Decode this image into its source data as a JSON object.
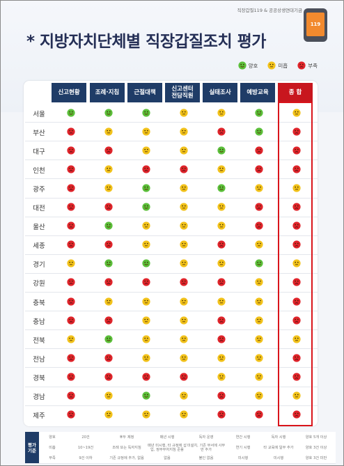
{
  "header": {
    "source": "직장갑질119 & 공공상생연대기금",
    "title": "* 지방자치단체별 직장갑질조치 평가",
    "logo_text": "119"
  },
  "legend": [
    {
      "key": "good",
      "label": "양호"
    },
    {
      "key": "fair",
      "label": "미흡"
    },
    {
      "key": "poor",
      "label": "부족"
    }
  ],
  "columns": [
    "신고현황",
    "조례·지침",
    "근절대책",
    "신고센터\n전담직원",
    "실태조사",
    "예방교육",
    "종 합"
  ],
  "rows": [
    {
      "region": "서울",
      "ratings": [
        "good",
        "good",
        "good",
        "fair",
        "fair",
        "good",
        "fair"
      ]
    },
    {
      "region": "부산",
      "ratings": [
        "poor",
        "fair",
        "fair",
        "fair",
        "poor",
        "good",
        "poor"
      ]
    },
    {
      "region": "대구",
      "ratings": [
        "poor",
        "poor",
        "fair",
        "fair",
        "good",
        "poor",
        "poor"
      ]
    },
    {
      "region": "인천",
      "ratings": [
        "poor",
        "fair",
        "poor",
        "poor",
        "fair",
        "poor",
        "poor"
      ]
    },
    {
      "region": "광주",
      "ratings": [
        "poor",
        "fair",
        "good",
        "fair",
        "good",
        "fair",
        "fair"
      ]
    },
    {
      "region": "대전",
      "ratings": [
        "poor",
        "poor",
        "good",
        "fair",
        "fair",
        "poor",
        "poor"
      ]
    },
    {
      "region": "울산",
      "ratings": [
        "poor",
        "good",
        "fair",
        "fair",
        "fair",
        "poor",
        "poor"
      ]
    },
    {
      "region": "세종",
      "ratings": [
        "poor",
        "poor",
        "fair",
        "fair",
        "poor",
        "fair",
        "poor"
      ]
    },
    {
      "region": "경기",
      "ratings": [
        "fair",
        "good",
        "good",
        "fair",
        "fair",
        "good",
        "fair"
      ]
    },
    {
      "region": "강원",
      "ratings": [
        "poor",
        "poor",
        "poor",
        "poor",
        "poor",
        "fair",
        "poor"
      ]
    },
    {
      "region": "충북",
      "ratings": [
        "poor",
        "fair",
        "fair",
        "fair",
        "fair",
        "fair",
        "poor"
      ]
    },
    {
      "region": "충남",
      "ratings": [
        "poor",
        "poor",
        "fair",
        "fair",
        "poor",
        "fair",
        "poor"
      ]
    },
    {
      "region": "전북",
      "ratings": [
        "fair",
        "good",
        "fair",
        "fair",
        "poor",
        "fair",
        "fair"
      ]
    },
    {
      "region": "전남",
      "ratings": [
        "poor",
        "poor",
        "fair",
        "fair",
        "fair",
        "fair",
        "poor"
      ]
    },
    {
      "region": "경북",
      "ratings": [
        "poor",
        "poor",
        "poor",
        "poor",
        "fair",
        "fair",
        "poor"
      ]
    },
    {
      "region": "경남",
      "ratings": [
        "poor",
        "fair",
        "good",
        "fair",
        "poor",
        "fair",
        "fair"
      ]
    },
    {
      "region": "제주",
      "ratings": [
        "poor",
        "fair",
        "fair",
        "fair",
        "poor",
        "poor",
        "poor"
      ]
    }
  ],
  "criteria": {
    "label": "평가\n기준",
    "rows": [
      {
        "grade": "양호",
        "cells": [
          "20건",
          "후두 제정",
          "매년 시행",
          "독자 운영",
          "연간 시행",
          "독자 시행",
          "양호 5개 이상"
        ]
      },
      {
        "grade": "미흡",
        "cells": [
          "10~19건",
          "조례 또는 독자지침",
          "매년 미시행, 타 규정에 삽입, 정부부처지침 준용",
          "미설치, 기존 부서에 사무만 추가",
          "연기 시행",
          "타 교육에 일부 추가",
          "양호 3건 이상"
        ]
      },
      {
        "grade": "부족",
        "cells": [
          "9건 이하",
          "기존 규정에 추가, 없음",
          "없음",
          "불인 없음",
          "미시행",
          "미시행",
          "양호 3건 미만"
        ]
      }
    ]
  },
  "colors": {
    "navy": "#1f3c67",
    "red": "#c8161e",
    "good": "#5bbf3a",
    "fair": "#f2c21b",
    "poor": "#e0242b"
  }
}
